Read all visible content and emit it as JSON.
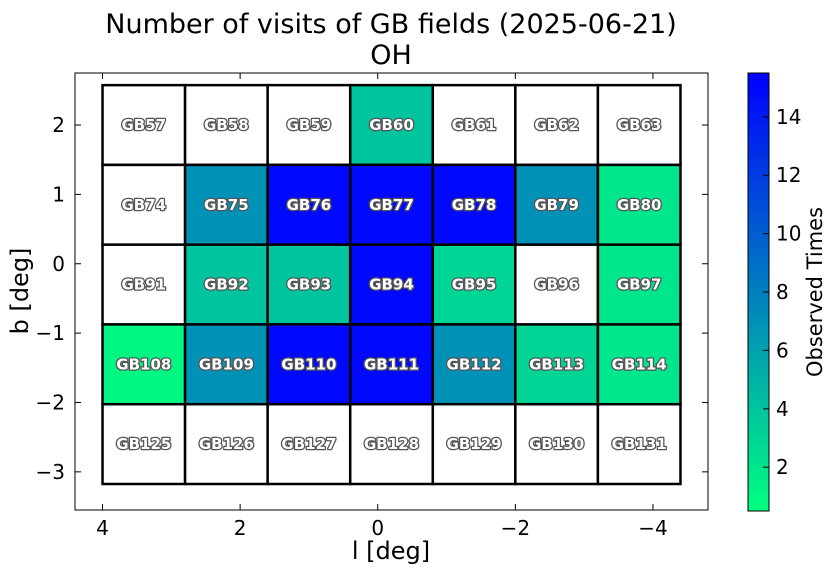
{
  "chart_data": {
    "type": "heatmap",
    "title": "Number of visits of GB fields (2025-06-21)",
    "subtitle": "OH",
    "xlabel": "l [deg]",
    "ylabel": "b [deg]",
    "xlim": [
      4.4,
      -4.8
    ],
    "ylim": [
      -3.55,
      2.75
    ],
    "x_ticks": [
      4,
      2,
      0,
      -2,
      -4
    ],
    "x_tick_labels": [
      "4",
      "2",
      "0",
      "−2",
      "−4"
    ],
    "y_ticks": [
      2,
      1,
      0,
      -1,
      -2,
      -3
    ],
    "y_tick_labels": [
      "2",
      "1",
      "0",
      "−1",
      "−2",
      "−3"
    ],
    "column_centers_l": [
      3.4,
      2.2,
      1.0,
      -0.2,
      -1.4,
      -2.6,
      -3.8
    ],
    "row_centers_b": [
      2.0,
      0.85,
      -0.3,
      -1.45,
      -2.6
    ],
    "cell_width_deg": 1.2,
    "cell_height_deg": 1.15,
    "colorbar": {
      "label": "Observed Times",
      "range": [
        0.5,
        15.5
      ],
      "ticks": [
        2,
        4,
        6,
        8,
        10,
        12,
        14
      ],
      "tick_labels": [
        "2",
        "4",
        "6",
        "8",
        "10",
        "12",
        "14"
      ],
      "color_low": "#00ff80",
      "color_high": "#0000ff"
    },
    "fields": [
      [
        "GB57",
        "GB58",
        "GB59",
        "GB60",
        "GB61",
        "GB62",
        "GB63"
      ],
      [
        "GB74",
        "GB75",
        "GB76",
        "GB77",
        "GB78",
        "GB79",
        "GB80"
      ],
      [
        "GB91",
        "GB92",
        "GB93",
        "GB94",
        "GB95",
        "GB96",
        "GB97"
      ],
      [
        "GB108",
        "GB109",
        "GB110",
        "GB111",
        "GB112",
        "GB113",
        "GB114"
      ],
      [
        "GB125",
        "GB126",
        "GB127",
        "GB128",
        "GB129",
        "GB130",
        "GB131"
      ]
    ],
    "values": [
      [
        0,
        0,
        0,
        4,
        0,
        0,
        0
      ],
      [
        0,
        7,
        15,
        15,
        15,
        7,
        2
      ],
      [
        0,
        4,
        4,
        15,
        3,
        0,
        2
      ],
      [
        1,
        7,
        15,
        15,
        7,
        3,
        2
      ],
      [
        0,
        0,
        0,
        0,
        0,
        0,
        0
      ]
    ],
    "zero_color": "#ffffff"
  }
}
